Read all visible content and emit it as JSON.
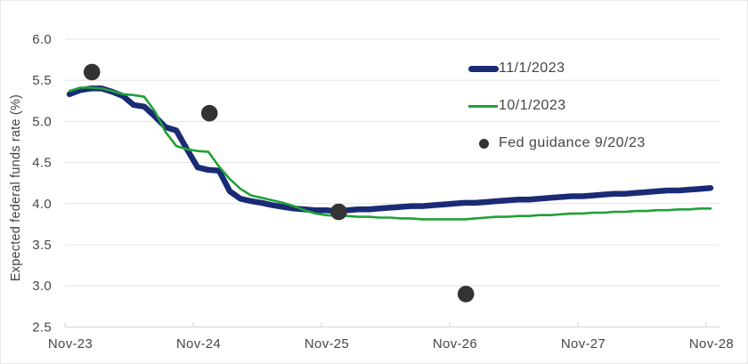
{
  "chart_data": {
    "type": "line",
    "title": "",
    "y_axis": {
      "title": "Expected federal funds rate (%)",
      "min": 2.5,
      "max": 6.0,
      "tick_values": [
        6.0,
        5.5,
        5.0,
        4.5,
        4.0,
        3.5,
        3.0,
        2.5
      ],
      "ticks": [
        "6.0",
        "5.5",
        "5.0",
        "4.5",
        "4.0",
        "3.5",
        "3.0",
        "2.5"
      ],
      "grid": true
    },
    "x_axis": {
      "ticks": [
        "Nov-23",
        "Nov-24",
        "Nov-25",
        "Nov-26",
        "Nov-27",
        "Nov-28"
      ],
      "tick_months": [
        0,
        12,
        24,
        36,
        48,
        60
      ]
    },
    "legend_position": "upper-right-inside",
    "series": [
      {
        "name": "11/1/2023",
        "color": "#1a2b76",
        "width": 6.5,
        "x_unit": "months-from-Nov-23",
        "values": [
          5.33,
          5.38,
          5.4,
          5.4,
          5.36,
          5.31,
          5.2,
          5.18,
          5.06,
          4.93,
          4.89,
          4.66,
          4.44,
          4.41,
          4.4,
          4.15,
          4.06,
          4.03,
          4.01,
          3.98,
          3.96,
          3.94,
          3.93,
          3.92,
          3.92,
          3.91,
          3.92,
          3.93,
          3.93,
          3.94,
          3.95,
          3.96,
          3.97,
          3.97,
          3.98,
          3.99,
          4.0,
          4.01,
          4.01,
          4.02,
          4.03,
          4.04,
          4.05,
          4.05,
          4.06,
          4.07,
          4.08,
          4.09,
          4.09,
          4.1,
          4.11,
          4.12,
          4.12,
          4.13,
          4.14,
          4.15,
          4.16,
          4.16,
          4.17,
          4.18,
          4.19
        ]
      },
      {
        "name": "10/1/2023",
        "color": "#21a038",
        "width": 2.6,
        "x_unit": "months-from-Nov-23",
        "values": [
          5.37,
          5.41,
          5.41,
          5.4,
          5.37,
          5.33,
          5.32,
          5.3,
          5.12,
          4.87,
          4.7,
          4.66,
          4.64,
          4.63,
          4.45,
          4.3,
          4.18,
          4.1,
          4.07,
          4.04,
          4.01,
          3.97,
          3.92,
          3.88,
          3.86,
          3.85,
          3.85,
          3.84,
          3.84,
          3.83,
          3.83,
          3.82,
          3.82,
          3.81,
          3.81,
          3.81,
          3.81,
          3.81,
          3.82,
          3.83,
          3.84,
          3.84,
          3.85,
          3.85,
          3.86,
          3.86,
          3.87,
          3.88,
          3.88,
          3.89,
          3.89,
          3.9,
          3.9,
          3.91,
          3.91,
          3.92,
          3.92,
          3.93,
          3.93,
          3.94,
          3.94
        ]
      }
    ],
    "fed_guidance": {
      "name": "Fed guidance 9/20/23",
      "color": "#333333",
      "dot_radius": 9.3,
      "points": [
        {
          "date": "Dec-23",
          "value": 5.6,
          "m": 2.1
        },
        {
          "date": "Dec-24",
          "value": 5.1,
          "m": 13.1
        },
        {
          "date": "Dec-25",
          "value": 3.9,
          "m": 25.2
        },
        {
          "date": "Dec-26",
          "value": 2.9,
          "m": 37.1
        }
      ]
    }
  },
  "colors": {
    "gridline": "#e4e4e4",
    "axis_line": "#d8d8d8",
    "tick_text": "#474747",
    "background": "#ffffff"
  }
}
